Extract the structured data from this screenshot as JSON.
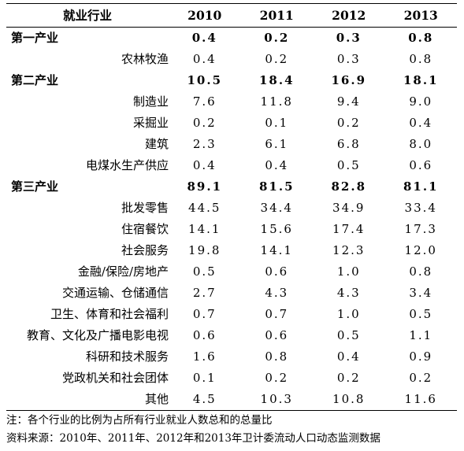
{
  "table": {
    "header": {
      "industry": "就业行业",
      "years": [
        "2010",
        "2011",
        "2012",
        "2013"
      ]
    },
    "rows": [
      {
        "name": "第一产业",
        "kind": "sector",
        "values": [
          "0.4",
          "0.2",
          "0.3",
          "0.8"
        ]
      },
      {
        "name": "农林牧渔",
        "kind": "item",
        "values": [
          "0.4",
          "0.2",
          "0.3",
          "0.8"
        ]
      },
      {
        "name": "第二产业",
        "kind": "sector",
        "values": [
          "10.5",
          "18.4",
          "16.9",
          "18.1"
        ]
      },
      {
        "name": "制造业",
        "kind": "item",
        "values": [
          "7.6",
          "11.8",
          "9.4",
          "9.0"
        ]
      },
      {
        "name": "采掘业",
        "kind": "item",
        "values": [
          "0.2",
          "0.1",
          "0.2",
          "0.4"
        ]
      },
      {
        "name": "建筑",
        "kind": "item",
        "values": [
          "2.3",
          "6.1",
          "6.8",
          "8.0"
        ]
      },
      {
        "name": "电煤水生产供应",
        "kind": "item",
        "values": [
          "0.4",
          "0.4",
          "0.5",
          "0.6"
        ]
      },
      {
        "name": "第三产业",
        "kind": "sector",
        "values": [
          "89.1",
          "81.5",
          "82.8",
          "81.1"
        ]
      },
      {
        "name": "批发零售",
        "kind": "item",
        "values": [
          "44.5",
          "34.4",
          "34.9",
          "33.4"
        ]
      },
      {
        "name": "住宿餐饮",
        "kind": "item",
        "values": [
          "14.1",
          "15.6",
          "17.4",
          "17.3"
        ]
      },
      {
        "name": "社会服务",
        "kind": "item",
        "values": [
          "19.8",
          "14.1",
          "12.3",
          "12.0"
        ]
      },
      {
        "name": "金融/保险/房地产",
        "kind": "item",
        "values": [
          "0.5",
          "0.6",
          "1.0",
          "0.8"
        ]
      },
      {
        "name": "交通运输、仓储通信",
        "kind": "item",
        "values": [
          "2.7",
          "4.3",
          "4.3",
          "3.4"
        ]
      },
      {
        "name": "卫生、体育和社会福利",
        "kind": "item",
        "values": [
          "0.7",
          "0.7",
          "1.0",
          "0.5"
        ]
      },
      {
        "name": "教育、文化及广播电影电视",
        "kind": "item",
        "values": [
          "0.6",
          "0.6",
          "0.5",
          "1.1"
        ]
      },
      {
        "name": "科研和技术服务",
        "kind": "item",
        "values": [
          "1.6",
          "0.8",
          "0.4",
          "0.9"
        ]
      },
      {
        "name": "党政机关和社会团体",
        "kind": "item",
        "values": [
          "0.1",
          "0.2",
          "0.2",
          "0.2"
        ]
      },
      {
        "name": "其他",
        "kind": "item",
        "values": [
          "4.5",
          "10.3",
          "10.8",
          "11.6"
        ]
      }
    ]
  },
  "notes": {
    "note": "注：各个行业的比例为占所有行业就业人数总和的总量比",
    "source": "资料来源：2010年、2011年、2012年和2013年卫计委流动人口动态监测数据"
  }
}
